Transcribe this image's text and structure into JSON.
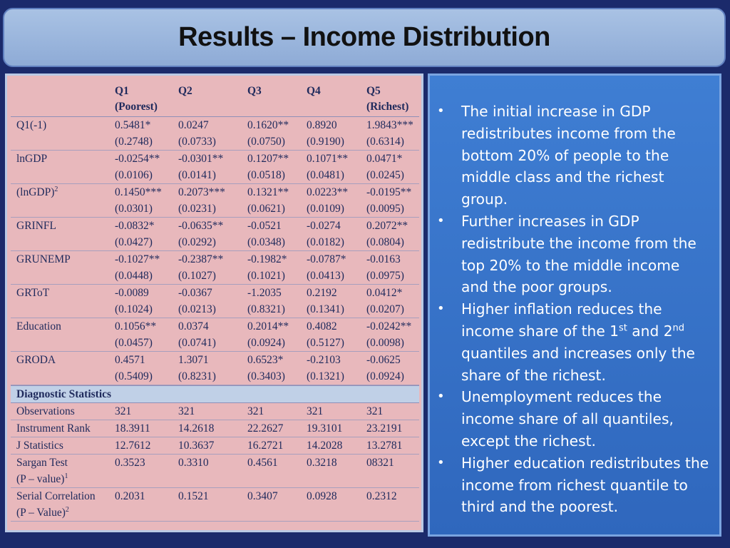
{
  "title": "Results – Income Distribution",
  "table": {
    "headers": [
      {
        "line1": "",
        "line2": ""
      },
      {
        "line1": "Q1",
        "line2": "(Poorest)"
      },
      {
        "line1": "Q2",
        "line2": ""
      },
      {
        "line1": "Q3",
        "line2": ""
      },
      {
        "line1": "Q4",
        "line2": ""
      },
      {
        "line1": "Q5",
        "line2": "(Richest)"
      }
    ],
    "rows": [
      {
        "label": "Q1(-1)",
        "coef": [
          "0.5481*",
          "0.0247",
          "0.1620**",
          "0.8920",
          "1.9843***"
        ],
        "se": [
          "(0.2748)",
          "(0.0733)",
          "(0.0750)",
          "(0.9190)",
          "(0.6314)"
        ]
      },
      {
        "label": "lnGDP",
        "coef": [
          "-0.0254**",
          "-0.0301**",
          "0.1207**",
          "0.1071**",
          "0.0471*"
        ],
        "se": [
          "(0.0106)",
          "(0.0141)",
          "(0.0518)",
          "(0.0481)",
          "(0.0245)"
        ]
      },
      {
        "label": "(lnGDP)",
        "label_sup": "2",
        "coef": [
          "0.1450***",
          "0.2073***",
          "0.1321**",
          "0.0223**",
          "-0.0195**"
        ],
        "se": [
          "(0.0301)",
          "(0.0231)",
          "(0.0621)",
          "(0.0109)",
          "(0.0095)"
        ]
      },
      {
        "label": "GRINFL",
        "coef": [
          "-0.0832*",
          "-0.0635**",
          "-0.0521",
          "-0.0274",
          "0.2072**"
        ],
        "se": [
          "(0.0427)",
          "(0.0292)",
          "(0.0348)",
          "(0.0182)",
          "(0.0804)"
        ]
      },
      {
        "label": "GRUNEMP",
        "coef": [
          "-0.1027**",
          "-0.2387**",
          "-0.1982*",
          "-0.0787*",
          "-0.0163"
        ],
        "se": [
          "(0.0448)",
          "(0.1027)",
          "(0.1021)",
          "(0.0413)",
          "(0.0975)"
        ]
      },
      {
        "label": "GRToT",
        "coef": [
          "-0.0089",
          "-0.0367",
          "-1.2035",
          "0.2192",
          "0.0412*"
        ],
        "se": [
          "(0.1024)",
          "(0.0213)",
          "(0.8321)",
          "(0.1341)",
          "(0.0207)"
        ]
      },
      {
        "label": "Education",
        "coef": [
          "0.1056**",
          "0.0374",
          "0.2014**",
          "0.4082",
          "-0.0242**"
        ],
        "se": [
          "(0.0457)",
          "(0.0741)",
          "(0.0924)",
          "(0.5127)",
          "(0.0098)"
        ]
      },
      {
        "label": "GRODA",
        "coef": [
          "0.4571",
          "1.3071",
          "0.6523*",
          "-0.2103",
          "-0.0625"
        ],
        "se": [
          "(0.5409)",
          "(0.8231)",
          "(0.3403)",
          "(0.1321)",
          "(0.0924)"
        ]
      }
    ],
    "diagnostic_header": "Diagnostic Statistics",
    "diagnostics": [
      {
        "label": "Observations",
        "label2": "",
        "label2_sup": "",
        "values": [
          "321",
          "321",
          "321",
          "321",
          "321"
        ]
      },
      {
        "label": "Instrument Rank",
        "label2": "",
        "label2_sup": "",
        "values": [
          "18.3911",
          "14.2618",
          "22.2627",
          "19.3101",
          "23.2191"
        ]
      },
      {
        "label": "J Statistics",
        "label2": "",
        "label2_sup": "",
        "values": [
          "12.7612",
          "10.3637",
          "16.2721",
          "14.2028",
          "13.2781"
        ]
      },
      {
        "label": "Sargan Test",
        "label2": "(P – value)",
        "label2_sup": "1",
        "values": [
          "0.3523",
          "0.3310",
          "0.4561",
          "0.3218",
          "08321"
        ]
      },
      {
        "label": "Serial Correlation",
        "label2": "(P – Value)",
        "label2_sup": "2",
        "values": [
          "0.2031",
          "0.1521",
          "0.3407",
          "0.0928",
          "0.2312"
        ]
      }
    ]
  },
  "bullets": [
    {
      "text": "The initial increase in GDP redistributes income from the bottom 20% of people to the middle class and the richest group."
    },
    {
      "text": "Further increases in GDP redistribute the income from the top 20% to the middle income and the poor groups."
    },
    {
      "pre": "Higher inflation reduces the income share of the 1",
      "sup1": "st",
      "mid": " and 2",
      "sup2": "nd",
      "post": " quantiles and increases only the share of the richest."
    },
    {
      "text": "Unemployment reduces the income share of all quantiles, except the richest."
    },
    {
      "text": "Higher education redistributes the income from richest quantile to third and the poorest."
    }
  ],
  "bullet_char": "•"
}
